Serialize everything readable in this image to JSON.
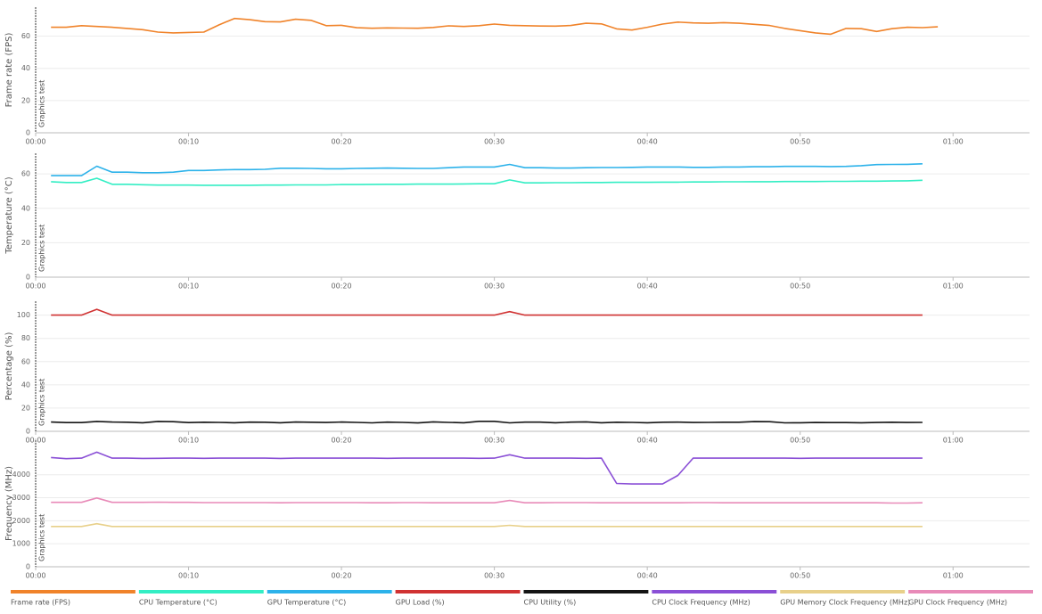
{
  "chart_data": [
    {
      "type": "line",
      "y_label": "Frame rate (FPS)",
      "annotation": "Graphics test",
      "x": [
        1,
        2,
        3,
        4,
        5,
        6,
        7,
        8,
        9,
        10,
        11,
        12,
        13,
        14,
        15,
        16,
        17,
        18,
        19,
        20,
        21,
        22,
        23,
        24,
        25,
        26,
        27,
        28,
        29,
        30,
        31,
        32,
        33,
        34,
        35,
        36,
        37,
        38,
        39,
        40,
        41,
        42,
        43,
        44,
        45,
        46,
        47,
        48,
        49,
        50,
        51,
        52,
        53,
        54,
        55,
        56,
        57,
        58,
        59
      ],
      "xlim": [
        0,
        65
      ],
      "xticks": [
        {
          "value": 0,
          "label": "00:00"
        },
        {
          "value": 10,
          "label": "00:10"
        },
        {
          "value": 20,
          "label": "00:20"
        },
        {
          "value": 30,
          "label": "00:30"
        },
        {
          "value": 40,
          "label": "00:40"
        },
        {
          "value": 50,
          "label": "00:50"
        },
        {
          "value": 60,
          "label": "01:00"
        }
      ],
      "ylim": [
        0,
        78
      ],
      "yticks": [
        0,
        20,
        40,
        60
      ],
      "grid": true,
      "series": [
        {
          "name": "Frame rate (FPS)",
          "color": "#f0832a",
          "values": [
            65.5,
            65.5,
            66.5,
            66,
            65.5,
            64.8,
            64,
            62.5,
            62,
            62.3,
            62.5,
            67,
            71,
            70.2,
            69,
            68.8,
            70.5,
            69.8,
            66.5,
            66.7,
            65.2,
            64.9,
            65.1,
            65,
            64.9,
            65.4,
            66.4,
            66,
            66.5,
            67.5,
            66.7,
            66.5,
            66.3,
            66.2,
            66.6,
            68,
            67.6,
            64.5,
            63.8,
            65.5,
            67.5,
            68.7,
            68.2,
            68,
            68.4,
            68,
            67.3,
            66.6,
            64.8,
            63.4,
            62,
            61.2,
            64.8,
            64.6,
            62.9,
            64.6,
            65.5,
            65.3,
            65.8
          ]
        }
      ]
    },
    {
      "type": "line",
      "y_label": "Temperature (°C)",
      "annotation": "Graphics test",
      "x": [
        1,
        2,
        3,
        4,
        5,
        6,
        7,
        8,
        9,
        10,
        11,
        12,
        13,
        14,
        15,
        16,
        17,
        18,
        19,
        20,
        21,
        22,
        23,
        24,
        25,
        26,
        27,
        28,
        29,
        30,
        31,
        32,
        33,
        34,
        35,
        36,
        37,
        38,
        39,
        40,
        41,
        42,
        43,
        44,
        45,
        46,
        47,
        48,
        49,
        50,
        51,
        52,
        53,
        54,
        55,
        56,
        57,
        58
      ],
      "xlim": [
        0,
        65
      ],
      "xticks": [
        {
          "value": 0,
          "label": "00:00"
        },
        {
          "value": 10,
          "label": "00:10"
        },
        {
          "value": 20,
          "label": "00:20"
        },
        {
          "value": 30,
          "label": "00:30"
        },
        {
          "value": 40,
          "label": "00:40"
        },
        {
          "value": 50,
          "label": "00:50"
        },
        {
          "value": 60,
          "label": "01:00"
        }
      ],
      "ylim": [
        0,
        72
      ],
      "yticks": [
        0,
        20,
        40,
        60
      ],
      "grid": true,
      "series": [
        {
          "name": "CPU Temperature (°C)",
          "color": "#33eec4",
          "values": [
            55.5,
            55,
            55,
            57.5,
            54,
            54,
            53.7,
            53.5,
            53.5,
            53.5,
            53.4,
            53.4,
            53.4,
            53.4,
            53.5,
            53.5,
            53.6,
            53.6,
            53.6,
            53.8,
            53.8,
            53.9,
            54,
            54,
            54.1,
            54.1,
            54.1,
            54.2,
            54.3,
            54.3,
            56.5,
            54.8,
            54.8,
            54.9,
            54.9,
            55,
            55,
            55.1,
            55.1,
            55.1,
            55.2,
            55.2,
            55.3,
            55.3,
            55.4,
            55.4,
            55.5,
            55.5,
            55.6,
            55.6,
            55.6,
            55.7,
            55.7,
            55.8,
            55.8,
            55.9,
            56,
            56.3
          ]
        },
        {
          "name": "GPU Temperature (°C)",
          "color": "#2cb2ea",
          "values": [
            59,
            59,
            59,
            64.5,
            61,
            61,
            60.7,
            60.7,
            61,
            62,
            62,
            62.3,
            62.5,
            62.5,
            62.7,
            63.3,
            63.3,
            63.2,
            63,
            63,
            63.2,
            63.3,
            63.4,
            63.3,
            63.2,
            63.2,
            63.6,
            64,
            64,
            64,
            65.5,
            63.6,
            63.6,
            63.4,
            63.4,
            63.6,
            63.7,
            63.7,
            63.8,
            64,
            64,
            64,
            63.8,
            63.8,
            64,
            64,
            64.2,
            64.2,
            64.4,
            64.4,
            64.4,
            64.3,
            64.4,
            64.8,
            65.4,
            65.5,
            65.6,
            65.9
          ]
        }
      ]
    },
    {
      "type": "line",
      "y_label": "Percentage (%)",
      "annotation": "Graphics test",
      "x": [
        1,
        2,
        3,
        4,
        5,
        6,
        7,
        8,
        9,
        10,
        11,
        12,
        13,
        14,
        15,
        16,
        17,
        18,
        19,
        20,
        21,
        22,
        23,
        24,
        25,
        26,
        27,
        28,
        29,
        30,
        31,
        32,
        33,
        34,
        35,
        36,
        37,
        38,
        39,
        40,
        41,
        42,
        43,
        44,
        45,
        46,
        47,
        48,
        49,
        50,
        51,
        52,
        53,
        54,
        55,
        56,
        57,
        58
      ],
      "xlim": [
        0,
        65
      ],
      "xticks": [
        {
          "value": 0,
          "label": "00:00"
        },
        {
          "value": 10,
          "label": "00:10"
        },
        {
          "value": 20,
          "label": "00:20"
        },
        {
          "value": 30,
          "label": "00:30"
        },
        {
          "value": 40,
          "label": "00:40"
        },
        {
          "value": 50,
          "label": "00:50"
        },
        {
          "value": 60,
          "label": "01:00"
        }
      ],
      "ylim": [
        0,
        112
      ],
      "yticks": [
        0,
        20,
        40,
        60,
        80,
        100
      ],
      "grid": true,
      "series": [
        {
          "name": "GPU Load (%)",
          "color": "#d03232",
          "values": [
            100,
            100,
            100,
            105,
            100,
            100,
            100,
            100,
            100,
            100,
            100,
            100,
            100,
            100,
            100,
            100,
            100,
            100,
            100,
            100,
            100,
            100,
            100,
            100,
            100,
            100,
            100,
            100,
            100,
            100,
            103,
            100,
            100,
            100,
            100,
            100,
            100,
            100,
            100,
            100,
            100,
            100,
            100,
            100,
            100,
            100,
            100,
            100,
            100,
            100,
            100,
            100,
            100,
            100,
            100,
            100,
            100,
            100
          ]
        },
        {
          "name": "CPU Utility (%)",
          "color": "#141414",
          "values": [
            8,
            7.5,
            7.5,
            8.5,
            8,
            7.8,
            7.4,
            8.5,
            8.3,
            7.5,
            7.8,
            7.7,
            7.4,
            7.9,
            7.8,
            7.4,
            8,
            7.8,
            7.6,
            8,
            7.7,
            7.3,
            7.9,
            7.7,
            7.2,
            8.1,
            7.7,
            7.4,
            8.6,
            8.6,
            7.3,
            7.9,
            7.9,
            7.4,
            7.9,
            8.1,
            7.4,
            7.8,
            7.7,
            7.4,
            7.8,
            7.9,
            7.6,
            7.7,
            7.8,
            7.8,
            8.4,
            8.3,
            7.3,
            7.4,
            7.6,
            7.5,
            7.5,
            7.4,
            7.6,
            7.8,
            7.6,
            7.7
          ]
        }
      ]
    },
    {
      "type": "line",
      "y_label": "Frequency (MHz)",
      "annotation": "Graphics test",
      "x": [
        1,
        2,
        3,
        4,
        5,
        6,
        7,
        8,
        9,
        10,
        11,
        12,
        13,
        14,
        15,
        16,
        17,
        18,
        19,
        20,
        21,
        22,
        23,
        24,
        25,
        26,
        27,
        28,
        29,
        30,
        31,
        32,
        33,
        34,
        35,
        36,
        37,
        38,
        39,
        40,
        41,
        42,
        43,
        44,
        45,
        46,
        47,
        48,
        49,
        50,
        51,
        52,
        53,
        54,
        55,
        56,
        57,
        58
      ],
      "xlim": [
        0,
        65
      ],
      "xticks": [
        {
          "value": 0,
          "label": "00:00"
        },
        {
          "value": 10,
          "label": "00:10"
        },
        {
          "value": 20,
          "label": "00:20"
        },
        {
          "value": 30,
          "label": "00:30"
        },
        {
          "value": 40,
          "label": "00:40"
        },
        {
          "value": 50,
          "label": "00:50"
        },
        {
          "value": 60,
          "label": "01:00"
        }
      ],
      "ylim": [
        0,
        5500
      ],
      "yticks": [
        0,
        1000,
        2000,
        3000,
        4000
      ],
      "grid": true,
      "series": [
        {
          "name": "CPU Clock Frequency (MHz)",
          "color": "#8a4fd6",
          "values": [
            4750,
            4700,
            4720,
            4980,
            4720,
            4720,
            4710,
            4715,
            4720,
            4720,
            4715,
            4720,
            4720,
            4720,
            4720,
            4710,
            4720,
            4720,
            4720,
            4720,
            4720,
            4720,
            4715,
            4720,
            4720,
            4720,
            4720,
            4720,
            4715,
            4720,
            4870,
            4720,
            4720,
            4720,
            4720,
            4715,
            4720,
            3620,
            3600,
            3600,
            3600,
            3970,
            4720,
            4720,
            4720,
            4720,
            4720,
            4720,
            4720,
            4715,
            4720,
            4720,
            4720,
            4720,
            4720,
            4720,
            4720,
            4720
          ]
        },
        {
          "name": "GPU Memory Clock Frequency (MHz)",
          "color": "#e8d08a",
          "values": [
            1750,
            1750,
            1750,
            1870,
            1750,
            1750,
            1750,
            1750,
            1750,
            1750,
            1750,
            1750,
            1750,
            1750,
            1750,
            1750,
            1750,
            1750,
            1750,
            1750,
            1750,
            1750,
            1750,
            1750,
            1750,
            1750,
            1750,
            1750,
            1750,
            1750,
            1800,
            1750,
            1750,
            1750,
            1750,
            1750,
            1750,
            1750,
            1750,
            1750,
            1750,
            1750,
            1750,
            1750,
            1750,
            1750,
            1750,
            1750,
            1750,
            1750,
            1750,
            1750,
            1750,
            1750,
            1750,
            1750,
            1750,
            1750
          ]
        },
        {
          "name": "GPU Clock Frequency (MHz)",
          "color": "#e88ab8",
          "values": [
            2800,
            2800,
            2800,
            2990,
            2800,
            2800,
            2800,
            2810,
            2800,
            2800,
            2790,
            2790,
            2790,
            2790,
            2790,
            2780,
            2790,
            2790,
            2790,
            2790,
            2790,
            2780,
            2780,
            2790,
            2790,
            2780,
            2780,
            2780,
            2780,
            2780,
            2880,
            2780,
            2780,
            2790,
            2790,
            2790,
            2780,
            2780,
            2780,
            2780,
            2780,
            2780,
            2790,
            2790,
            2780,
            2780,
            2780,
            2780,
            2780,
            2780,
            2780,
            2780,
            2780,
            2780,
            2780,
            2770,
            2770,
            2780
          ]
        }
      ]
    }
  ]
}
